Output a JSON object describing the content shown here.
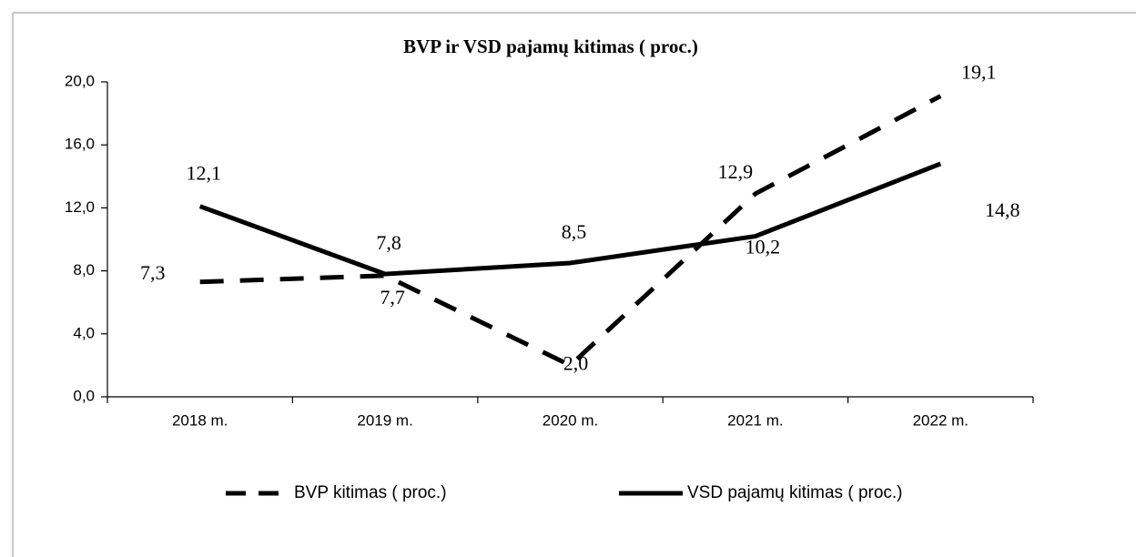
{
  "chart_data": {
    "type": "line",
    "title": "BVP  ir VSD pajamų kitimas ( proc.)",
    "categories": [
      "2018 m.",
      "2019 m.",
      "2020 m.",
      "2021 m.",
      "2022 m."
    ],
    "series": [
      {
        "name": "BVP kitimas ( proc.)",
        "color": "#000000",
        "dash": true,
        "values": [
          7.3,
          7.7,
          2.0,
          12.9,
          19.1
        ],
        "value_labels": [
          "7,3",
          "7,7",
          "2,0",
          "12,9",
          "19,1"
        ]
      },
      {
        "name": "VSD pajamų kitimas ( proc.)",
        "color": "#000000",
        "dash": false,
        "values": [
          12.1,
          7.8,
          8.5,
          10.2,
          14.8
        ],
        "value_labels": [
          "12,1",
          "7,8",
          "8,5",
          "10,2",
          "14,8"
        ]
      }
    ],
    "ylim": [
      0,
      20
    ],
    "yticks": [
      {
        "value": 0,
        "label": "0,0"
      },
      {
        "value": 4,
        "label": "4,0"
      },
      {
        "value": 8,
        "label": "8,0"
      },
      {
        "value": 12,
        "label": "12,0"
      },
      {
        "value": 16,
        "label": "16,0"
      },
      {
        "value": 20,
        "label": "20,0"
      }
    ],
    "grid": false,
    "legend": "bottom"
  }
}
